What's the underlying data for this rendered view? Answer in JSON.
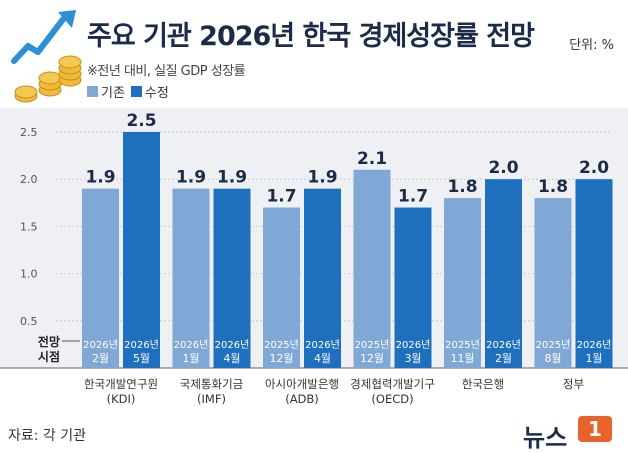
{
  "header": {
    "title": "주요 기관 2026년 한국 경제성장률 전망",
    "unit": "단위: %",
    "subtitle": "※전년 대비, 실질 GDP 성장률"
  },
  "footer": {
    "source": "자료: 각 기관"
  },
  "brand": {
    "logo_text": "뉴스",
    "badge_text": "1"
  },
  "colors": {
    "previous": "#7fa8d6",
    "revised": "#1f6fbf",
    "panel": "#eef0f3",
    "grid": "#c8cdd5",
    "text": "#1c2b4a"
  },
  "chart_data": {
    "type": "bar",
    "title": "주요 기관 2026년 한국 경제성장률 전망",
    "xlabel": "",
    "ylabel": "",
    "ylim": [
      0,
      2.7
    ],
    "yticks": [
      {
        "value": 0.5,
        "label": "0.5"
      },
      {
        "value": 1.0,
        "label": "1.0"
      },
      {
        "value": 1.5,
        "label": "1.5"
      },
      {
        "value": 2.0,
        "label": "2.0"
      },
      {
        "value": 2.5,
        "label": "2.5"
      }
    ],
    "grid": true,
    "legend": "top-left",
    "row_label": [
      "전망",
      "시점"
    ],
    "categories": [
      [
        "한국개발연구원",
        "(KDI)"
      ],
      [
        "국제통화기금",
        "(IMF)"
      ],
      [
        "아시아개발은행",
        "(ADB)"
      ],
      [
        "경제협력개발기구",
        "(OECD)"
      ],
      [
        "한국은행"
      ],
      [
        "정부"
      ]
    ],
    "series": [
      {
        "name": "기존",
        "values": [
          1.9,
          1.9,
          1.7,
          2.1,
          1.8,
          1.8
        ],
        "value_labels": [
          "1.9",
          "1.9",
          "1.7",
          "2.1",
          "1.8",
          "1.8"
        ],
        "dates": [
          [
            "2026년",
            "2월"
          ],
          [
            "2026년",
            "1월"
          ],
          [
            "2025년",
            "12월"
          ],
          [
            "2025년",
            "12월"
          ],
          [
            "2025년",
            "11월"
          ],
          [
            "2025년",
            "8월"
          ]
        ]
      },
      {
        "name": "수정",
        "values": [
          2.5,
          1.9,
          1.9,
          1.7,
          2.0,
          2.0
        ],
        "value_labels": [
          "2.5",
          "1.9",
          "1.9",
          "1.7",
          "2.0",
          "2.0"
        ],
        "dates": [
          [
            "2026년",
            "5월"
          ],
          [
            "2026년",
            "4월"
          ],
          [
            "2026년",
            "4월"
          ],
          [
            "2026년",
            "3월"
          ],
          [
            "2026년",
            "2월"
          ],
          [
            "2026년",
            "1월"
          ]
        ]
      }
    ]
  }
}
